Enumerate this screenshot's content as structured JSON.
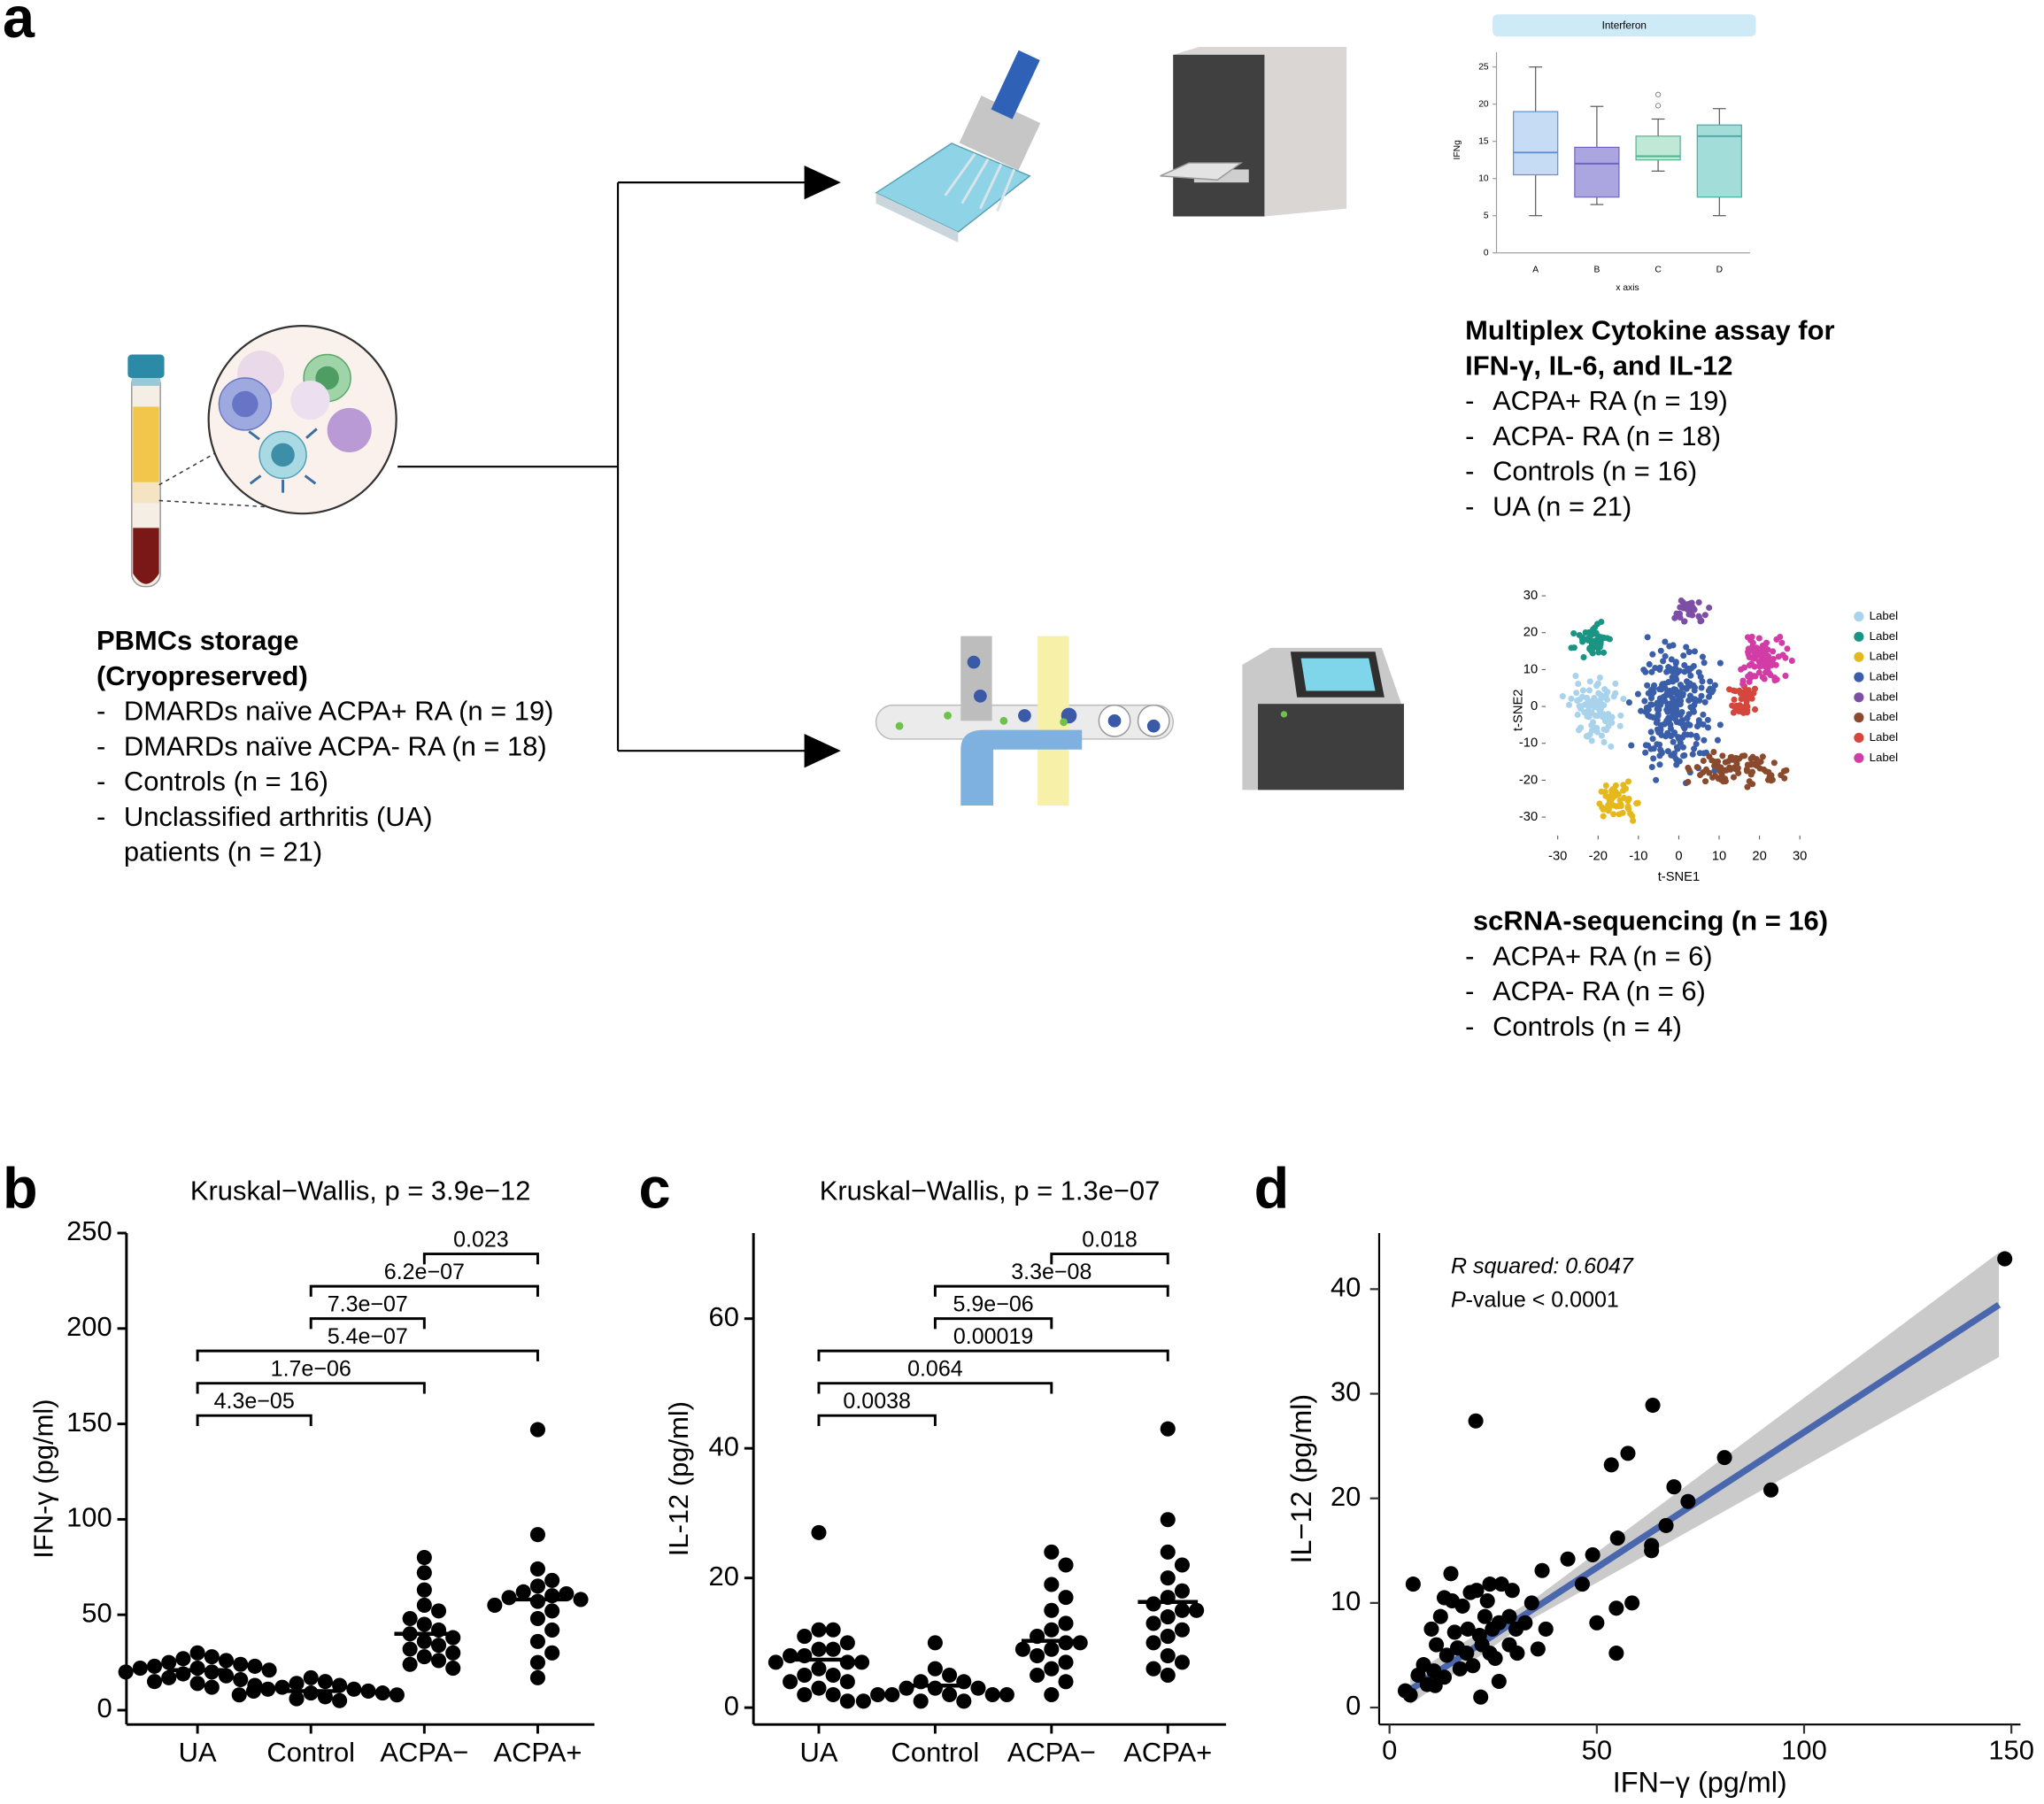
{
  "panel_labels": [
    "a",
    "b",
    "c",
    "d"
  ],
  "pbmc": {
    "title": [
      "PBMCs storage",
      "(Cryopreserved)"
    ],
    "bullet": "-",
    "items": [
      [
        "DMARDs naïve ACPA+ RA (n = 19)"
      ],
      [
        "DMARDs naïve ACPA- RA (n = 18)"
      ],
      [
        "Controls (n = 16)"
      ],
      [
        "Unclassified arthritis (UA)",
        "patients (n = 21)"
      ]
    ]
  },
  "multiplex": {
    "title": [
      "Multiplex Cytokine assay for",
      "IFN-γ, IL-6, and IL-12"
    ],
    "items": [
      "ACPA+ RA (n = 19)",
      "ACPA- RA (n = 18)",
      "Controls (n = 16)",
      "UA (n = 21)"
    ]
  },
  "scrna": {
    "title": "scRNA-sequencing (n = 16)",
    "items": [
      "ACPA+ RA (n = 6)",
      "ACPA- RA (n = 6)",
      "Controls (n = 4)"
    ]
  },
  "chart_data": [
    {
      "type": "dot",
      "title": "Kruskal−Wallis, p = 3.9e−12",
      "ylabel": "IFN-γ (pg/ml)",
      "categories": [
        "UA",
        "Control",
        "ACPA−",
        "ACPA+"
      ],
      "color": "#000000",
      "values": [
        [
          30,
          28,
          27,
          26,
          25,
          24,
          23,
          23,
          22,
          22,
          21,
          20,
          20,
          19,
          18,
          17,
          16,
          15,
          14,
          13,
          12
        ],
        [
          17,
          15,
          14,
          13,
          12,
          11,
          11,
          10,
          10,
          9,
          9,
          8,
          8,
          7,
          6,
          5
        ],
        [
          80,
          72,
          63,
          55,
          52,
          48,
          45,
          42,
          40,
          38,
          36,
          34,
          32,
          30,
          28,
          26,
          24,
          22
        ],
        [
          147,
          92,
          74,
          68,
          65,
          62,
          61,
          60,
          59,
          58,
          57,
          55,
          52,
          48,
          42,
          36,
          30,
          25,
          17
        ]
      ],
      "medians": [
        21,
        10,
        40,
        58
      ],
      "ylim": [
        -7.5,
        250
      ],
      "yticks": [
        0,
        50,
        100,
        150,
        200,
        250
      ],
      "comparisons": [
        {
          "pair": [
            2,
            3
          ],
          "label": "0.023"
        },
        {
          "pair": [
            1,
            3
          ],
          "label": "6.2e−07"
        },
        {
          "pair": [
            1,
            2
          ],
          "label": "7.3e−07"
        },
        {
          "pair": [
            0,
            3
          ],
          "label": "5.4e−07"
        },
        {
          "pair": [
            0,
            2
          ],
          "label": "1.7e−06"
        },
        {
          "pair": [
            0,
            1
          ],
          "label": "4.3e−05"
        }
      ]
    },
    {
      "type": "dot",
      "title": "Kruskal−Wallis, p = 1.3e−07",
      "ylabel": "IL-12 (pg/ml)",
      "categories": [
        "UA",
        "Control",
        "ACPA−",
        "ACPA+"
      ],
      "color": "#000000",
      "values": [
        [
          27,
          12,
          12,
          11,
          10,
          9,
          9,
          8,
          8,
          7,
          7,
          7,
          6,
          5,
          5,
          4,
          4,
          3,
          2,
          2,
          1
        ],
        [
          10,
          6,
          5,
          4,
          4,
          3,
          3,
          3,
          2,
          2,
          2,
          2,
          2,
          1,
          1,
          1
        ],
        [
          24,
          22,
          19,
          17,
          15,
          13,
          12,
          11,
          10,
          10,
          9,
          9,
          8,
          7,
          6,
          5,
          4,
          2
        ],
        [
          43,
          29,
          24,
          22,
          20,
          18,
          17,
          16,
          15,
          15,
          14,
          13,
          12,
          11,
          10,
          8,
          7,
          6,
          5
        ]
      ],
      "medians": [
        7.4,
        3.4,
        10.3,
        16.3
      ],
      "ylim": [
        -2.6,
        73.2
      ],
      "yticks": [
        0,
        20,
        40,
        60
      ],
      "comparisons": [
        {
          "pair": [
            2,
            3
          ],
          "label": "0.018"
        },
        {
          "pair": [
            1,
            3
          ],
          "label": "3.3e−08"
        },
        {
          "pair": [
            1,
            2
          ],
          "label": "5.9e−06"
        },
        {
          "pair": [
            0,
            3
          ],
          "label": "0.00019"
        },
        {
          "pair": [
            0,
            2
          ],
          "label": "0.064"
        },
        {
          "pair": [
            0,
            1
          ],
          "label": "0.0038"
        }
      ]
    },
    {
      "type": "scatter",
      "xlabel": "IFN−γ (pg/ml)",
      "ylabel": "IL−12 (pg/ml)",
      "color": "#000000",
      "x": [
        148.4,
        92,
        80.8,
        68.6,
        66.7,
        72,
        63.5,
        57.5,
        53.5,
        63.2,
        63.2,
        55,
        58.5,
        54.7,
        50,
        54.7,
        49,
        43,
        46.5,
        36.8,
        37.7,
        35.8,
        30.8,
        20.8,
        5.7,
        14.8,
        15.1,
        13.2,
        17.6,
        21,
        24.2,
        27,
        29.6,
        23,
        26.4,
        28.9,
        18.9,
        21.7,
        24.8,
        15.7,
        11.3,
        13.8,
        16.4,
        8.2,
        10.7,
        13.2,
        9.1,
        11,
        5,
        3.8,
        22.3,
        24.2,
        25.5,
        26.4,
        22,
        20.1,
        18.6,
        17,
        6.9,
        34.3,
        32.7,
        30.5,
        28.9,
        23.6,
        19.5,
        12.3,
        10.1
      ],
      "y": [
        42.9,
        20.8,
        23.9,
        21.1,
        17.4,
        19.7,
        28.9,
        24.3,
        23.2,
        15,
        15.5,
        16.2,
        10,
        9.5,
        8.1,
        5.2,
        14.6,
        14.2,
        11.8,
        13.1,
        7.5,
        5.6,
        5.2,
        27.4,
        11.8,
        12.8,
        10.2,
        10.5,
        9.7,
        11.2,
        11.8,
        11.8,
        11.2,
        8.7,
        8.1,
        8.7,
        7.5,
        6.9,
        7.5,
        7.2,
        6,
        5,
        5.7,
        4.1,
        3.5,
        2.9,
        2.2,
        2.1,
        1.2,
        1.6,
        6,
        5.2,
        4.7,
        2.5,
        1,
        4,
        5.2,
        3.7,
        3.1,
        10,
        8.1,
        7.5,
        6,
        10.2,
        11,
        8.7,
        7.5
      ],
      "fit": {
        "x": [
          5,
          35,
          147
        ],
        "y": [
          1.7,
          9.5,
          38.5
        ],
        "lower": [
          0.3,
          8.6,
          33.5
        ],
        "upper": [
          3.1,
          10.4,
          43.5
        ],
        "color": "#4a66ad",
        "band_color": "#c4c4c4"
      },
      "annotations": [
        {
          "text": "R squared: 0.6047"
        },
        {
          "italic": "P",
          "text": "-value < 0.0001"
        }
      ],
      "xlim": [
        -2.5,
        152.2
      ],
      "ylim": [
        -1.62,
        45.36
      ],
      "xticks": [
        0,
        50,
        100,
        150
      ],
      "yticks": [
        0,
        10,
        20,
        30,
        40
      ]
    },
    {
      "type": "box",
      "title": "Interferon",
      "ylabel": "IFNg",
      "xlabel": "x axis",
      "categories": [
        "A",
        "B",
        "C",
        "D"
      ],
      "boxes": [
        {
          "min": 5,
          "q1": 10.5,
          "median": 13.5,
          "q3": 19,
          "max": 25,
          "outliers": []
        },
        {
          "min": 6.5,
          "q1": 7.5,
          "median": 12,
          "q3": 14.2,
          "max": 19.7,
          "outliers": []
        },
        {
          "min": 11,
          "q1": 12.5,
          "median": 13,
          "q3": 15.7,
          "max": 18,
          "outliers": [
            19.8,
            21.3
          ]
        },
        {
          "min": 5,
          "q1": 7.5,
          "median": 15.7,
          "q3": 17.2,
          "max": 19.4,
          "outliers": []
        }
      ],
      "colors": [
        "#c6dcf5",
        "#aba5e0",
        "#bfe8d6",
        "#a3ddd9"
      ],
      "edge_colors": [
        "#5f8fcf",
        "#6f66bb",
        "#55b08e",
        "#47aaa2"
      ],
      "ylim": [
        0,
        27
      ],
      "yticks": [
        0,
        5,
        10,
        15,
        20,
        25
      ]
    },
    {
      "type": "tsne",
      "xlabel": "t-SNE1",
      "ylabel": "t-SNE2",
      "xlim": [
        -33,
        33
      ],
      "ylim": [
        -35,
        33
      ],
      "xticks": [
        -30,
        -20,
        -10,
        0,
        10,
        20,
        30
      ],
      "yticks": [
        -30,
        -20,
        -10,
        0,
        10,
        20,
        30
      ],
      "series": [
        {
          "name": "Label",
          "color": "#a9d3ec"
        },
        {
          "name": "Label",
          "color": "#1a9483"
        },
        {
          "name": "Label",
          "color": "#e5b81c"
        },
        {
          "name": "Label",
          "color": "#3b5ea8"
        },
        {
          "name": "Label",
          "color": "#7c4ea6"
        },
        {
          "name": "Label",
          "color": "#8a4a2d"
        },
        {
          "name": "Label",
          "color": "#d5463c"
        },
        {
          "name": "Label",
          "color": "#d23ca6"
        }
      ]
    }
  ]
}
